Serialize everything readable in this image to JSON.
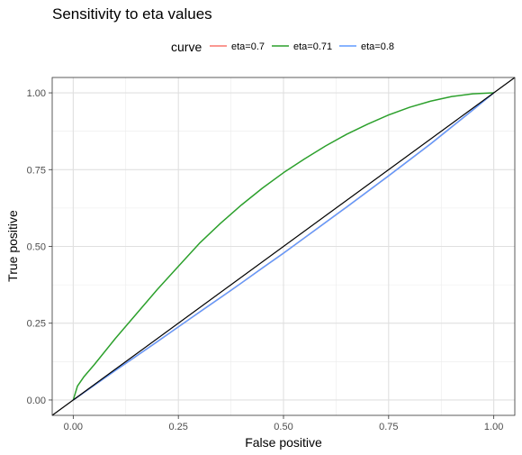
{
  "chart_data": {
    "type": "line",
    "title": "Sensitivity to eta values",
    "xlabel": "False positive",
    "ylabel": "True positive",
    "xlim": [
      -0.05,
      1.05
    ],
    "ylim": [
      -0.05,
      1.05
    ],
    "x_ticks": [
      "0.00",
      "0.25",
      "0.50",
      "0.75",
      "1.00"
    ],
    "y_ticks": [
      "0.00",
      "0.25",
      "0.50",
      "0.75",
      "1.00"
    ],
    "grid": true,
    "legend": {
      "title": "curve",
      "position": "top",
      "entries": [
        "eta=0.7",
        "eta=0.71",
        "eta=0.8"
      ]
    },
    "series": [
      {
        "name": "eta=0.7",
        "color": "#F8766D",
        "x": [
          0.0,
          0.05,
          0.1,
          0.15,
          0.2,
          0.25,
          0.3,
          0.35,
          0.4,
          0.45,
          0.5,
          0.55,
          0.6,
          0.65,
          0.7,
          0.75,
          0.8,
          0.85,
          0.9,
          0.95,
          1.0
        ],
        "y": [
          0.0,
          0.048,
          0.096,
          0.143,
          0.19,
          0.238,
          0.286,
          0.333,
          0.381,
          0.43,
          0.478,
          0.528,
          0.578,
          0.628,
          0.679,
          0.73,
          0.782,
          0.834,
          0.889,
          0.944,
          1.0
        ]
      },
      {
        "name": "eta=0.71",
        "color": "#2CA02C",
        "x": [
          0.0,
          0.01,
          0.025,
          0.05,
          0.1,
          0.15,
          0.2,
          0.25,
          0.3,
          0.35,
          0.4,
          0.45,
          0.5,
          0.55,
          0.6,
          0.65,
          0.7,
          0.75,
          0.8,
          0.85,
          0.9,
          0.95,
          1.0
        ],
        "y": [
          0.0,
          0.045,
          0.075,
          0.115,
          0.2,
          0.28,
          0.36,
          0.435,
          0.51,
          0.575,
          0.635,
          0.69,
          0.74,
          0.785,
          0.827,
          0.865,
          0.898,
          0.928,
          0.953,
          0.973,
          0.988,
          0.997,
          1.0
        ]
      },
      {
        "name": "eta=0.8",
        "color": "#619CFF",
        "x": [
          0.0,
          0.05,
          0.1,
          0.15,
          0.2,
          0.25,
          0.3,
          0.35,
          0.4,
          0.45,
          0.5,
          0.55,
          0.6,
          0.65,
          0.7,
          0.75,
          0.8,
          0.85,
          0.9,
          0.95,
          1.0
        ],
        "y": [
          0.0,
          0.048,
          0.096,
          0.143,
          0.19,
          0.238,
          0.286,
          0.333,
          0.381,
          0.43,
          0.478,
          0.528,
          0.578,
          0.628,
          0.679,
          0.73,
          0.782,
          0.834,
          0.889,
          0.944,
          1.0
        ]
      }
    ],
    "reference_line": {
      "color": "#000000",
      "x": [
        -0.05,
        1.05
      ],
      "y": [
        -0.05,
        1.05
      ]
    }
  }
}
